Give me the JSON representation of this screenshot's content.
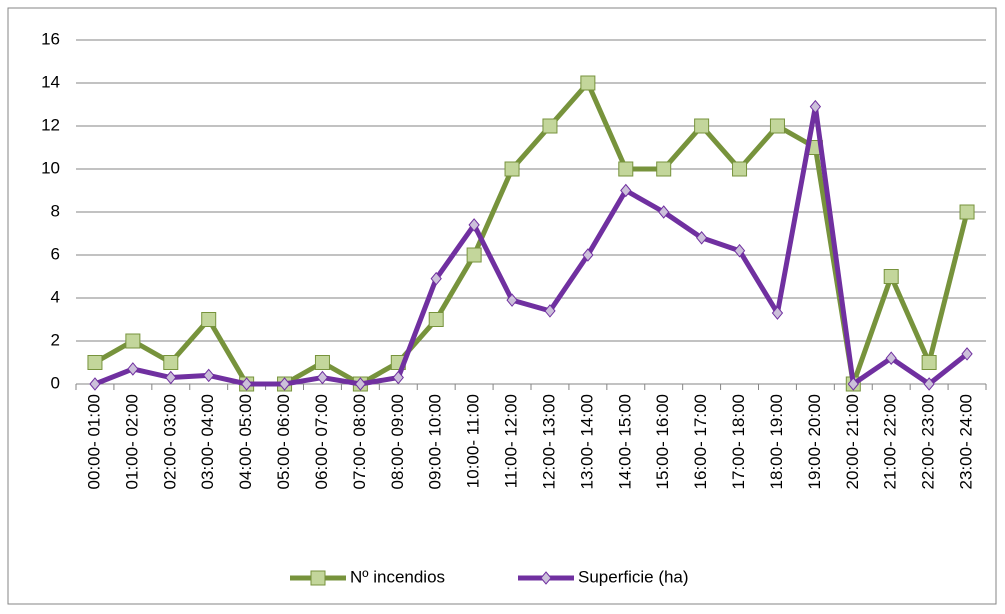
{
  "chart_data": {
    "type": "line",
    "categories": [
      "00:00- 01:00",
      "01:00- 02:00",
      "02:00- 03:00",
      "03:00- 04:00",
      "04:00- 05:00",
      "05:00- 06:00",
      "06:00- 07:00",
      "07:00- 08:00",
      "08:00- 09:00",
      "09:00- 10:00",
      "10:00- 11:00",
      "11:00- 12:00",
      "12:00- 13:00",
      "13:00- 14:00",
      "14:00- 15:00",
      "15:00- 16:00",
      "16:00- 17:00",
      "17:00- 18:00",
      "18:00- 19:00",
      "19:00- 20:00",
      "20:00- 21:00",
      "21:00- 22:00",
      "22:00- 23:00",
      "23:00- 24:00"
    ],
    "series": [
      {
        "name": "Nº incendios",
        "color": "#77933c",
        "marker": "square",
        "marker_color": "#c3d69b",
        "values": [
          1,
          2,
          1,
          3,
          0,
          0,
          1,
          0,
          1,
          3,
          6,
          10,
          12,
          14,
          10,
          10,
          12,
          10,
          12,
          11,
          0,
          5,
          1,
          8
        ]
      },
      {
        "name": "Superficie (ha)",
        "color": "#7030a0",
        "marker": "diamond",
        "marker_color": "#ccc0da",
        "values": [
          0,
          0.7,
          0.3,
          0.4,
          0,
          0,
          0.3,
          0,
          0.3,
          4.9,
          7.4,
          3.9,
          3.4,
          6,
          9,
          8,
          6.8,
          6.2,
          3.3,
          12.9,
          0,
          1.2,
          0,
          1.4
        ]
      }
    ],
    "ylim": [
      0,
      16
    ],
    "yticks": [
      0,
      2,
      4,
      6,
      8,
      10,
      12,
      14,
      16
    ],
    "grid": true,
    "legend": "bottom"
  }
}
